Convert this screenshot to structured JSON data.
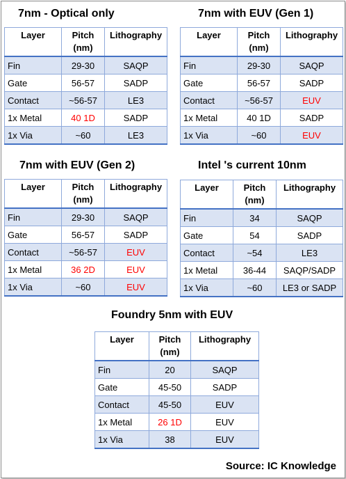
{
  "colors": {
    "header_rule": "#4472c4",
    "band": "#dae3f3",
    "grid": "#8ea9db",
    "highlight": "#ff0000"
  },
  "tables": [
    {
      "title": "7nm - Optical only",
      "headers": [
        "Layer",
        "Pitch (nm)",
        "Lithography"
      ],
      "rows": [
        [
          "Fin",
          "29-30",
          "SAQP"
        ],
        [
          "Gate",
          "56-57",
          "SADP"
        ],
        [
          "Contact",
          "~56-57",
          "LE3"
        ],
        [
          "1x Metal",
          "40 1D",
          "SADP"
        ],
        [
          "1x Via",
          "~60",
          "LE3"
        ]
      ]
    },
    {
      "title": "7nm with EUV (Gen 1)",
      "headers": [
        "Layer",
        "Pitch (nm)",
        "Lithography"
      ],
      "rows": [
        [
          "Fin",
          "29-30",
          "SAQP"
        ],
        [
          "Gate",
          "56-57",
          "SADP"
        ],
        [
          "Contact",
          "~56-57",
          "EUV"
        ],
        [
          "1x Metal",
          "40 1D",
          "SADP"
        ],
        [
          "1x Via",
          "~60",
          "EUV"
        ]
      ]
    },
    {
      "title": "7nm with EUV (Gen 2)",
      "headers": [
        "Layer",
        "Pitch (nm)",
        "Lithography"
      ],
      "rows": [
        [
          "Fin",
          "29-30",
          "SAQP"
        ],
        [
          "Gate",
          "56-57",
          "SADP"
        ],
        [
          "Contact",
          "~56-57",
          "EUV"
        ],
        [
          "1x Metal",
          "36 2D",
          "EUV"
        ],
        [
          "1x Via",
          "~60",
          "EUV"
        ]
      ]
    },
    {
      "title": "Intel 's current 10nm",
      "headers": [
        "Layer",
        "Pitch (nm)",
        "Lithography"
      ],
      "rows": [
        [
          "Fin",
          "34",
          "SAQP"
        ],
        [
          "Gate",
          "54",
          "SADP"
        ],
        [
          "Contact",
          "~54",
          "LE3"
        ],
        [
          "1x Metal",
          "36-44",
          "SAQP/SADP"
        ],
        [
          "1x Via",
          "~60",
          "LE3 or SADP"
        ]
      ]
    },
    {
      "title": "Foundry 5nm with EUV",
      "headers": [
        "Layer",
        "Pitch (nm)",
        "Lithography"
      ],
      "rows": [
        [
          "Fin",
          "20",
          "SAQP"
        ],
        [
          "Gate",
          "45-50",
          "SADP"
        ],
        [
          "Contact",
          "45-50",
          "EUV"
        ],
        [
          "1x Metal",
          "26 1D",
          "EUV"
        ],
        [
          "1x Via",
          "38",
          "EUV"
        ]
      ]
    }
  ],
  "source": "Source: IC Knowledge"
}
